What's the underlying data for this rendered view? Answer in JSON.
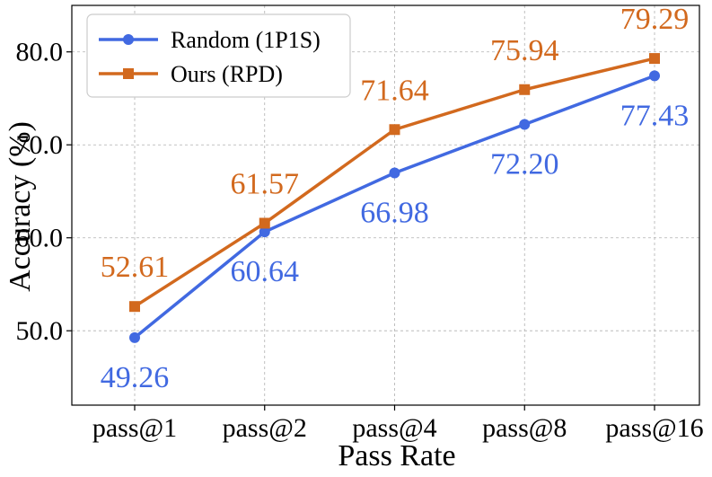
{
  "chart_data": {
    "type": "line",
    "xlabel": "Pass Rate",
    "ylabel": "Accuracy (%)",
    "categories": [
      "pass@1",
      "pass@2",
      "pass@4",
      "pass@8",
      "pass@16"
    ],
    "ylim": [
      42.0,
      85.0
    ],
    "yticks": [
      "50.0",
      "60.0",
      "70.0",
      "80.0"
    ],
    "grid": true,
    "legend_position": "top-left",
    "series": [
      {
        "name": "Random (1P1S)",
        "color": "#4169e1",
        "marker": "circle",
        "values": [
          49.26,
          60.64,
          66.98,
          72.2,
          77.43
        ],
        "labels": [
          "49.26",
          "60.64",
          "66.98",
          "72.20",
          "77.43"
        ]
      },
      {
        "name": "Ours (RPD)",
        "color": "#d2691e",
        "marker": "square",
        "values": [
          52.61,
          61.57,
          71.64,
          75.94,
          79.29
        ],
        "labels": [
          "52.61",
          "61.57",
          "71.64",
          "75.94",
          "79.29"
        ]
      }
    ]
  }
}
